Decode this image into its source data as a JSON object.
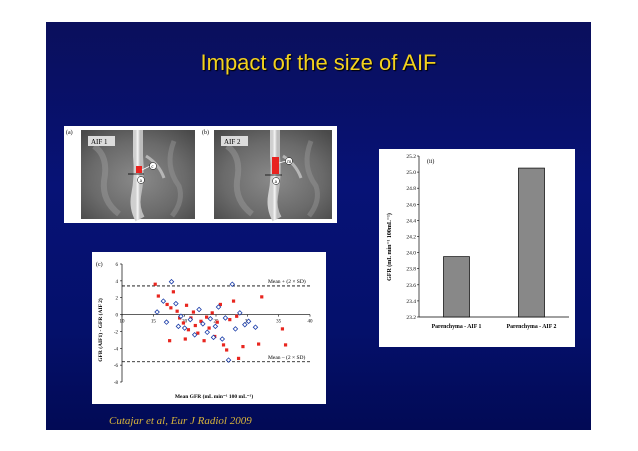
{
  "slide": {
    "title": "Impact of the size of AIF",
    "footer": "Cutajar et al, Eur J Radiol 2009"
  },
  "mri_panels": [
    {
      "panel_label": "(a)",
      "tag": "AIF 1",
      "markers": [
        "c",
        "a"
      ],
      "roi_color": "#e8221f"
    },
    {
      "panel_label": "(b)",
      "tag": "AIF 2",
      "markers": [
        "m",
        "a"
      ],
      "roi_color": "#e8221f"
    }
  ],
  "chart_data": [
    {
      "type": "scatter",
      "panel_label": "(c)",
      "xlabel": "Mean GFR (mL min⁻¹ 100 mL⁻¹)",
      "ylabel": "GFR (AIF1) - GFR (AIF 2)",
      "xlim": [
        10,
        40
      ],
      "ylim": [
        -8,
        6
      ],
      "x_ticks": [
        "10",
        "15",
        "20",
        "25",
        "30",
        "35",
        "40"
      ],
      "y_ticks": [
        "6",
        "4",
        "2",
        "0",
        "-2",
        "-4",
        "-6",
        "-8"
      ],
      "annotations": [
        {
          "text": "Mean + (2 × SD)",
          "y": 3.4
        },
        {
          "text": "Mean – (2 × SD)",
          "y": -5.6
        }
      ],
      "series": [
        {
          "marker": "filled-square",
          "color": "#e8261f",
          "points": [
            [
              15.3,
              3.6
            ],
            [
              15.8,
              2.2
            ],
            [
              17.2,
              1.2
            ],
            [
              17.8,
              0.8
            ],
            [
              18.2,
              2.7
            ],
            [
              18.8,
              0.4
            ],
            [
              19.2,
              -0.4
            ],
            [
              19.8,
              -1.0
            ],
            [
              20.3,
              1.1
            ],
            [
              20.6,
              -1.8
            ],
            [
              21.0,
              -0.4
            ],
            [
              21.4,
              0.3
            ],
            [
              21.7,
              -1.3
            ],
            [
              22.1,
              -2.2
            ],
            [
              22.6,
              -0.8
            ],
            [
              23.1,
              -3.1
            ],
            [
              23.5,
              -0.3
            ],
            [
              23.9,
              -1.6
            ],
            [
              24.4,
              0.2
            ],
            [
              24.8,
              -2.6
            ],
            [
              25.2,
              -0.9
            ],
            [
              25.7,
              1.2
            ],
            [
              26.2,
              -3.6
            ],
            [
              26.7,
              -4.2
            ],
            [
              27.2,
              -0.6
            ],
            [
              27.8,
              1.6
            ],
            [
              28.3,
              -0.2
            ],
            [
              28.6,
              -5.2
            ],
            [
              29.3,
              -3.8
            ],
            [
              31.8,
              -3.5
            ],
            [
              32.3,
              2.1
            ],
            [
              35.6,
              -1.7
            ],
            [
              36.1,
              -3.6
            ],
            [
              17.6,
              -3.1
            ],
            [
              20.1,
              -2.9
            ]
          ]
        },
        {
          "marker": "open-diamond",
          "color": "#1a3ca8",
          "points": [
            [
              15.6,
              0.3
            ],
            [
              16.6,
              1.6
            ],
            [
              17.1,
              -0.9
            ],
            [
              17.9,
              3.9
            ],
            [
              18.6,
              1.3
            ],
            [
              19.4,
              -0.2
            ],
            [
              20.0,
              -1.6
            ],
            [
              20.9,
              -0.6
            ],
            [
              21.6,
              -2.4
            ],
            [
              22.3,
              0.6
            ],
            [
              22.9,
              -1.1
            ],
            [
              23.6,
              -2.1
            ],
            [
              24.1,
              -0.5
            ],
            [
              24.9,
              -1.4
            ],
            [
              25.4,
              0.9
            ],
            [
              26.0,
              -2.9
            ],
            [
              26.5,
              -0.4
            ],
            [
              27.0,
              -5.4
            ],
            [
              27.6,
              3.6
            ],
            [
              28.1,
              -1.7
            ],
            [
              28.8,
              0.2
            ],
            [
              29.6,
              -1.2
            ],
            [
              30.2,
              -0.8
            ],
            [
              31.3,
              -1.5
            ],
            [
              19.0,
              -1.4
            ],
            [
              24.6,
              -2.7
            ]
          ]
        }
      ]
    },
    {
      "type": "bar",
      "panel_label": "(ii)",
      "ylabel": "GFR (mL min⁻¹ 100mL⁻¹)",
      "categories": [
        "Parenchyma - AIF 1",
        "Parenchyma - AIF 2"
      ],
      "values": [
        23.95,
        25.05
      ],
      "ylim": [
        23.2,
        25.2
      ],
      "y_ticks": [
        "25.2",
        "25.0",
        "24.8",
        "24.6",
        "24.4",
        "24.2",
        "24.0",
        "23.8",
        "23.6",
        "23.4",
        "23.2"
      ],
      "bar_color": "#888888"
    }
  ]
}
